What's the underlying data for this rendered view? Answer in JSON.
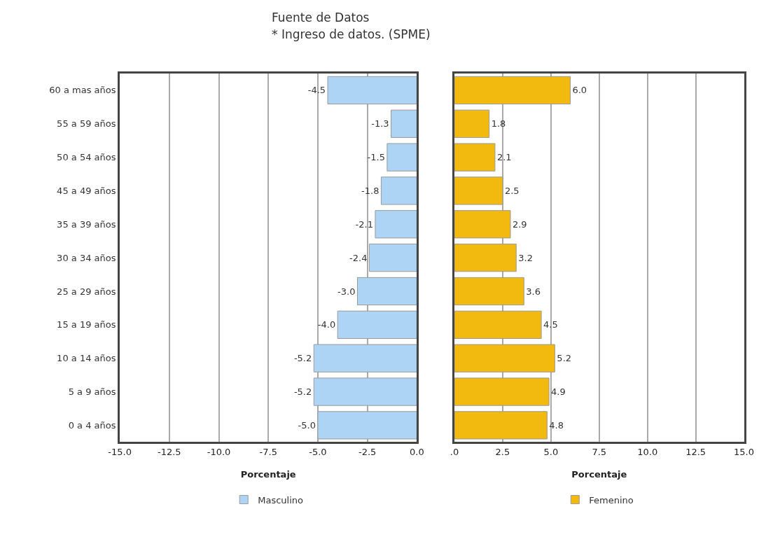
{
  "chart_data": [
    {
      "type": "bar",
      "orientation": "horizontal",
      "title": "Fuente de Datos",
      "subtitle": "* Ingreso de datos. (SPME)",
      "xlabel": "Porcentaje",
      "categories": [
        "60 a mas años",
        "55 a 59 años",
        "50 a 54 años",
        "45 a 49 años",
        "35 a 39 años",
        "30 a 34 años",
        "25 a 29 años",
        "15 a 19 años",
        "10 a 14 años",
        "5 a 9 años",
        "0 a 4 años"
      ],
      "series": [
        {
          "name": "Masculino",
          "color": "#aed4f5",
          "values": [
            -4.5,
            -1.3,
            -1.5,
            -1.8,
            -2.1,
            -2.4,
            -3.0,
            -4.0,
            -5.2,
            -5.2,
            -5.0
          ],
          "value_labels": [
            "-4.5",
            "-1.3",
            "-1.5",
            "-1.8",
            "-2.1",
            "-2.4",
            "-3.0",
            "-4.0",
            "-5.2",
            "-5.2",
            "-5.0"
          ]
        }
      ],
      "xlim": [
        -15,
        0
      ],
      "xticks": [
        {
          "value": -15,
          "label": "-15.0"
        },
        {
          "value": -12.5,
          "label": "-12.5"
        },
        {
          "value": -10,
          "label": "-10.0"
        },
        {
          "value": -7.5,
          "label": "-7.5"
        },
        {
          "value": -5,
          "label": "-5.0"
        },
        {
          "value": -2.5,
          "label": "-2.5"
        },
        {
          "value": 0,
          "label": "0.0"
        }
      ],
      "grid": "x",
      "legend": "bottom"
    },
    {
      "type": "bar",
      "orientation": "horizontal",
      "xlabel": "Porcentaje",
      "categories": [
        "60 a mas años",
        "55 a 59 años",
        "50 a 54 años",
        "45 a 49 años",
        "35 a 39 años",
        "30 a 34 años",
        "25 a 29 años",
        "15 a 19 años",
        "10 a 14 años",
        "5 a 9 años",
        "0 a 4 años"
      ],
      "series": [
        {
          "name": "Femenino",
          "color": "#f2b90f",
          "values": [
            6.0,
            1.8,
            2.1,
            2.5,
            2.9,
            3.2,
            3.6,
            4.5,
            5.2,
            4.9,
            4.8
          ],
          "value_labels": [
            "6.0",
            "1.8",
            "2.1",
            "2.5",
            "2.9",
            "3.2",
            "3.6",
            "4.5",
            "5.2",
            "4.9",
            "4.8"
          ]
        }
      ],
      "xlim": [
        0,
        15
      ],
      "xticks": [
        {
          "value": 0,
          "label": ".0"
        },
        2.5,
        {
          "value": 5,
          "label": "5.0"
        },
        7.5,
        {
          "value": 10,
          "label": "10.0"
        },
        12.5,
        {
          "value": 15,
          "label": "15.0"
        }
      ],
      "grid": "x",
      "legend": "bottom",
      "tick_labels": "x"
    }
  ]
}
